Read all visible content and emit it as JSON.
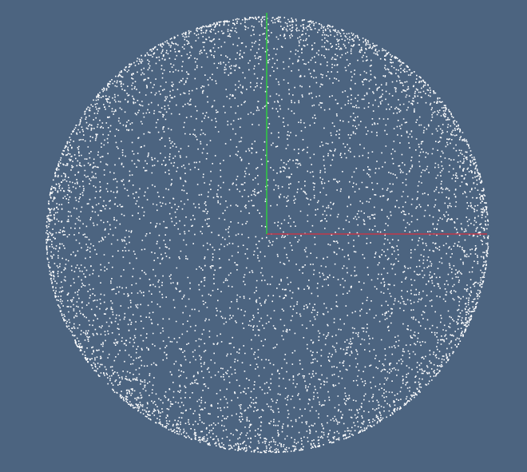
{
  "viewport": {
    "background_color": "#4c6480",
    "content": "point-cloud-sphere",
    "view": "orthographic-front"
  },
  "point_cloud": {
    "shape": "sphere",
    "point_color": "#ffffff",
    "approx_point_count": 9000,
    "density": "uniform-surface"
  },
  "axes": {
    "x_axis": {
      "color": "#c0394b",
      "direction": "right"
    },
    "y_axis": {
      "color": "#2ecc40",
      "direction": "up"
    },
    "origin": "sphere-center"
  }
}
